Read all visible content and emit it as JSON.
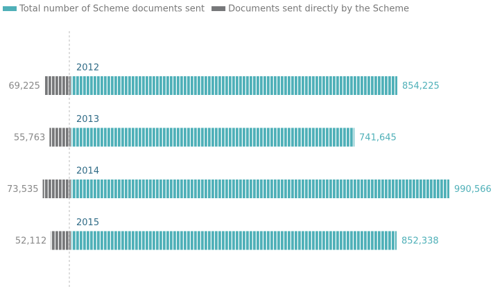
{
  "chart_data": {
    "type": "diverging-bar",
    "categories": [
      "2012",
      "2013",
      "2014",
      "2015"
    ],
    "series": [
      {
        "name": "Total number of Scheme documents sent",
        "color": "#4fb0b8",
        "values": [
          854225,
          741645,
          990566,
          852338
        ],
        "value_labels": [
          "854,225",
          "741,645",
          "990,566",
          "852,338"
        ]
      },
      {
        "name": "Documents sent directly by the Scheme",
        "color": "#77787a",
        "values": [
          69225,
          55763,
          73535,
          52112
        ],
        "value_labels": [
          "69,225",
          "55,763",
          "73,535",
          "52,112"
        ]
      }
    ]
  }
}
